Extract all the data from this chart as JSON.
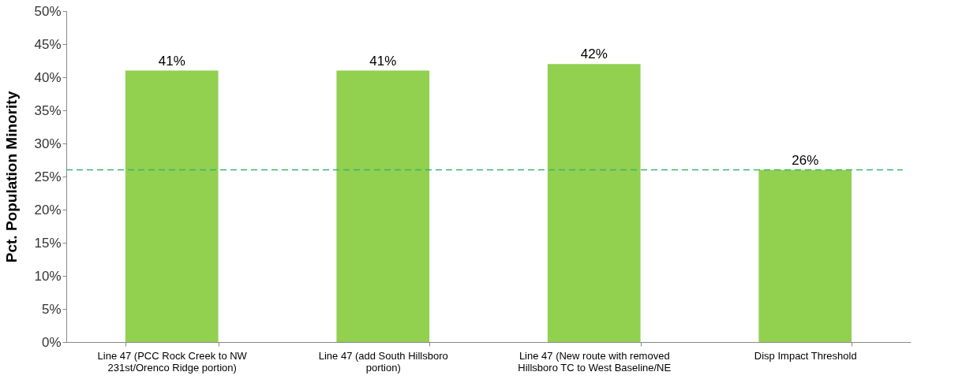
{
  "chart_data": {
    "type": "bar",
    "ylabel": "Pct. Population Minority",
    "categories": [
      "Line 47 (PCC Rock Creek to NW 231st/Orenco Ridge portion)",
      "Line 47 (add South Hillsboro portion)",
      "Line 47 (New route with removed Hillsboro TC to West Baseline/NE",
      "Disp Impact Threshold"
    ],
    "values": [
      41,
      41,
      42,
      26
    ],
    "value_labels": [
      "41%",
      "41%",
      "42%",
      "26%"
    ],
    "color": "#92d050",
    "ylim": [
      0,
      50
    ],
    "yticks": [
      {
        "value": 0,
        "label": "0%"
      },
      {
        "value": 5,
        "label": "5%"
      },
      {
        "value": 10,
        "label": "10%"
      },
      {
        "value": 15,
        "label": "15%"
      },
      {
        "value": 20,
        "label": "20%"
      },
      {
        "value": 25,
        "label": "25%"
      },
      {
        "value": 30,
        "label": "30%"
      },
      {
        "value": 35,
        "label": "35%"
      },
      {
        "value": 40,
        "label": "40%"
      },
      {
        "value": 45,
        "label": "45%"
      },
      {
        "value": 50,
        "label": "50%"
      }
    ],
    "ref_lines": [
      {
        "axis": "y",
        "value": 26,
        "color": "#3cb371",
        "line_style": "dashed"
      }
    ],
    "grid": false
  }
}
